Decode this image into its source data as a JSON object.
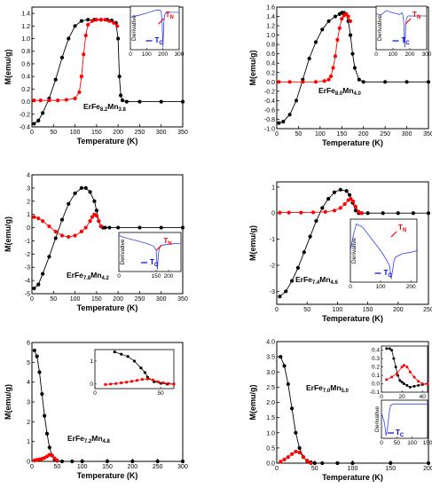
{
  "chart_data": [
    {
      "type": "scatter",
      "compound": {
        "base": "ErFe",
        "fe_sub": "8.2",
        "mn": "Mn",
        "mn_sub": "3.8"
      },
      "ylabel": "M(emu/g)",
      "xlabel": "Temperature (K)",
      "xlim": [
        0,
        350
      ],
      "ylim": [
        -0.4,
        1.5
      ],
      "xticks": [
        0,
        50,
        100,
        150,
        200,
        250,
        300,
        350
      ],
      "yticks": [
        -0.4,
        -0.2,
        0.0,
        0.2,
        0.4,
        0.6,
        0.8,
        1.0,
        1.2,
        1.4
      ],
      "yticklabels": [
        "-0.4",
        "-0.2",
        "0.0",
        "0.2",
        "0.4",
        "0.6",
        "0.8",
        "1.0",
        "1.2",
        "1.4"
      ],
      "series": [
        {
          "color": "#000000",
          "x": [
            5,
            15,
            25,
            40,
            55,
            70,
            85,
            100,
            115,
            130,
            145,
            160,
            175,
            185,
            195,
            200,
            203,
            206,
            210,
            220,
            250,
            300,
            350
          ],
          "y": [
            -0.35,
            -0.3,
            -0.18,
            0.05,
            0.35,
            0.7,
            1.0,
            1.2,
            1.28,
            1.3,
            1.3,
            1.3,
            1.3,
            1.29,
            1.25,
            1.0,
            0.4,
            0.1,
            0.02,
            0.0,
            0.0,
            0.0,
            0.0
          ]
        },
        {
          "color": "#ff0000",
          "x": [
            5,
            20,
            40,
            60,
            80,
            100,
            110,
            115,
            120,
            125,
            130,
            140,
            150,
            160,
            170,
            180,
            190,
            198
          ],
          "y": [
            0.02,
            0.02,
            0.02,
            0.02,
            0.03,
            0.05,
            0.15,
            0.4,
            0.75,
            1.05,
            1.22,
            1.28,
            1.3,
            1.3,
            1.3,
            1.28,
            1.25,
            1.2
          ]
        }
      ],
      "inset": {
        "xlabel_ticks": [
          0,
          100,
          200,
          300
        ],
        "xlim": [
          0,
          300
        ],
        "ylabel": "Derivative",
        "markers": [
          {
            "label": "T",
            "sub": "N",
            "color": "#ff0000"
          },
          {
            "label": "T",
            "sub": "C",
            "color": "#0000ff"
          }
        ],
        "x": [
          0,
          50,
          100,
          140,
          160,
          180,
          190,
          195,
          200,
          205,
          210,
          220,
          250,
          300
        ],
        "y": [
          0.5,
          0.58,
          0.68,
          0.78,
          0.82,
          0.83,
          0.75,
          0.2,
          -0.9,
          0.2,
          0.6,
          0.7,
          0.72,
          0.72
        ]
      }
    },
    {
      "type": "scatter",
      "compound": {
        "base": "ErFe",
        "fe_sub": "8.0",
        "mn": "Mn",
        "mn_sub": "4.0"
      },
      "ylabel": "M(emu/g)",
      "xlabel": "Temperature (K)",
      "xlim": [
        0,
        350
      ],
      "ylim": [
        -1.0,
        1.6
      ],
      "xticks": [
        0,
        50,
        100,
        150,
        200,
        250,
        300,
        350
      ],
      "yticks": [
        -1.0,
        -0.8,
        -0.6,
        -0.4,
        -0.2,
        0.0,
        0.2,
        0.4,
        0.6,
        0.8,
        1.0,
        1.2,
        1.4,
        1.6
      ],
      "yticklabels": [
        "-1.0",
        "-0.8",
        "-0.6",
        "-0.4",
        "-0.2",
        "0.0",
        "0.2",
        "0.4",
        "0.6",
        "0.8",
        "1.0",
        "1.2",
        "1.4",
        "1.6"
      ],
      "series": [
        {
          "color": "#000000",
          "x": [
            5,
            15,
            30,
            45,
            60,
            75,
            90,
            105,
            120,
            135,
            145,
            150,
            155,
            160,
            165,
            170,
            175,
            180,
            190,
            200,
            250,
            300,
            350
          ],
          "y": [
            -0.88,
            -0.85,
            -0.7,
            -0.4,
            0.05,
            0.5,
            0.85,
            1.12,
            1.3,
            1.4,
            1.45,
            1.48,
            1.48,
            1.45,
            1.3,
            1.0,
            0.6,
            0.3,
            0.05,
            0.0,
            0.0,
            0.0,
            0.0
          ]
        },
        {
          "color": "#ff0000",
          "x": [
            5,
            30,
            60,
            90,
            110,
            120,
            125,
            130,
            135,
            140,
            145,
            150,
            155,
            160,
            165,
            170
          ],
          "y": [
            0.0,
            0.0,
            0.0,
            0.0,
            0.02,
            0.05,
            0.12,
            0.3,
            0.55,
            0.9,
            1.15,
            1.35,
            1.42,
            1.45,
            1.4,
            1.3
          ]
        }
      ],
      "inset": {
        "xlabel_ticks": [
          0,
          100,
          200,
          300
        ],
        "xlim": [
          0,
          300
        ],
        "ylabel": "Derivative",
        "markers": [
          {
            "label": "T",
            "sub": "N",
            "color": "#ff0000"
          },
          {
            "label": "T",
            "sub": "C",
            "color": "#0000ff"
          }
        ],
        "x": [
          0,
          30,
          60,
          100,
          140,
          155,
          160,
          165,
          170,
          175,
          180,
          190,
          220,
          300
        ],
        "y": [
          0.65,
          0.6,
          0.8,
          0.7,
          0.62,
          0.7,
          0.55,
          0.1,
          -0.9,
          0.0,
          0.45,
          0.55,
          0.55,
          0.55
        ]
      }
    },
    {
      "type": "scatter",
      "compound": {
        "base": "ErFe",
        "fe_sub": "7.8",
        "mn": "Mn",
        "mn_sub": "4.2"
      },
      "ylabel": "M(emu/g)",
      "xlabel": "Temperature (K)",
      "xlim": [
        0,
        350
      ],
      "ylim": [
        -5,
        4
      ],
      "xticks": [
        0,
        50,
        100,
        150,
        200,
        250,
        300,
        350
      ],
      "yticks": [
        -5,
        -4,
        -3,
        -2,
        -1,
        0,
        1,
        2,
        3,
        4
      ],
      "yticklabels": [
        "-5",
        "-4",
        "-3",
        "-2",
        "-1",
        "0",
        "1",
        "2",
        "3",
        "4"
      ],
      "series": [
        {
          "color": "#000000",
          "x": [
            5,
            15,
            25,
            40,
            55,
            70,
            85,
            100,
            115,
            125,
            135,
            145,
            150,
            155,
            160,
            165,
            170,
            180,
            200,
            250,
            300,
            350
          ],
          "y": [
            -4.6,
            -4.3,
            -3.5,
            -2.2,
            -0.8,
            0.6,
            1.8,
            2.6,
            3.0,
            3.0,
            2.7,
            2.0,
            1.3,
            0.5,
            0.1,
            0.0,
            0.0,
            0.0,
            0.0,
            0.0,
            0.0,
            0.0
          ]
        },
        {
          "color": "#ff0000",
          "x": [
            5,
            15,
            25,
            40,
            55,
            70,
            85,
            100,
            115,
            125,
            135,
            140,
            145,
            150,
            155,
            160
          ],
          "y": [
            0.8,
            0.7,
            0.5,
            0.1,
            -0.3,
            -0.6,
            -0.7,
            -0.6,
            -0.3,
            0.0,
            0.5,
            0.8,
            1.0,
            0.9,
            0.5,
            0.1
          ]
        }
      ],
      "inset": {
        "xlabel_ticks": [
          0,
          150,
          200
        ],
        "xlim": [
          0,
          250
        ],
        "ylabel": "Derivative",
        "markers": [
          {
            "label": "T",
            "sub": "N",
            "color": "#ff0000"
          },
          {
            "label": "T",
            "sub": "C",
            "color": "#0000ff"
          }
        ],
        "x": [
          0,
          20,
          50,
          80,
          110,
          140,
          150,
          155,
          160,
          165,
          170,
          175,
          200,
          250
        ],
        "y": [
          0.85,
          0.75,
          0.65,
          0.55,
          0.45,
          0.3,
          0.1,
          -0.9,
          0.0,
          0.25,
          0.3,
          0.35,
          0.4,
          0.45
        ]
      }
    },
    {
      "type": "scatter",
      "compound": {
        "base": "ErFe",
        "fe_sub": "7.4",
        "mn": "Mn",
        "mn_sub": "4.6"
      },
      "ylabel": "M(emu/g)",
      "xlabel": "Temperature (K)",
      "xlim": [
        0,
        250
      ],
      "ylim": [
        -3.5,
        1.2
      ],
      "xticks": [
        0,
        50,
        100,
        150,
        200,
        250
      ],
      "yticks": [
        -3,
        -2,
        -1,
        0,
        1
      ],
      "yticklabels": [
        "-3",
        "-2",
        "-1",
        "0",
        "1"
      ],
      "series": [
        {
          "color": "#000000",
          "x": [
            5,
            15,
            25,
            35,
            45,
            55,
            65,
            75,
            85,
            95,
            105,
            115,
            120,
            125,
            130,
            135,
            140,
            150,
            175,
            200,
            225,
            250
          ],
          "y": [
            -3.2,
            -3.0,
            -2.6,
            -2.1,
            -1.5,
            -0.9,
            -0.3,
            0.2,
            0.55,
            0.8,
            0.9,
            0.85,
            0.7,
            0.4,
            0.1,
            0.0,
            0.0,
            0.0,
            0.0,
            0.0,
            0.0,
            0.0
          ]
        },
        {
          "color": "#ff0000",
          "x": [
            5,
            20,
            40,
            60,
            80,
            95,
            105,
            112,
            118,
            122,
            126,
            130,
            135,
            140
          ],
          "y": [
            0.02,
            0.02,
            0.02,
            0.03,
            0.05,
            0.1,
            0.2,
            0.35,
            0.5,
            0.55,
            0.45,
            0.25,
            0.05,
            0.0
          ]
        }
      ],
      "inset": {
        "xlabel_ticks": [
          0,
          100,
          200
        ],
        "xlim": [
          0,
          220
        ],
        "ylabel": "Derivative",
        "markers": [
          {
            "label": "T",
            "sub": "N",
            "color": "#ff0000"
          },
          {
            "label": "T",
            "sub": "C",
            "color": "#0000ff"
          }
        ],
        "x": [
          0,
          10,
          20,
          40,
          60,
          80,
          100,
          120,
          130,
          135,
          140,
          145,
          150,
          170,
          200,
          220
        ],
        "y": [
          0.0,
          0.5,
          0.85,
          0.75,
          0.5,
          0.25,
          0.0,
          -0.3,
          -0.5,
          -0.9,
          -0.6,
          -0.3,
          -0.2,
          -0.1,
          -0.05,
          0.0
        ]
      }
    },
    {
      "type": "scatter",
      "compound": {
        "base": "ErFe",
        "fe_sub": "7.2",
        "mn": "Mn",
        "mn_sub": "4.8"
      },
      "ylabel": "M(emu/g)",
      "xlabel": "Temperature (K)",
      "xlim": [
        0,
        300
      ],
      "ylim": [
        0,
        6
      ],
      "xticks": [
        0,
        50,
        100,
        150,
        200,
        250,
        300
      ],
      "yticks": [
        0,
        1,
        2,
        3,
        4,
        5,
        6
      ],
      "yticklabels": [
        "0",
        "1",
        "2",
        "3",
        "4",
        "5",
        "6"
      ],
      "series": [
        {
          "color": "#000000",
          "x": [
            5,
            10,
            15,
            20,
            25,
            30,
            35,
            40,
            45,
            50,
            60,
            80,
            100,
            150,
            200,
            250,
            300
          ],
          "y": [
            5.6,
            5.3,
            4.5,
            3.4,
            2.3,
            1.4,
            0.7,
            0.3,
            0.1,
            0.03,
            0.0,
            0.0,
            0.0,
            0.0,
            0.0,
            0.0,
            0.0
          ]
        },
        {
          "color": "#ff0000",
          "x": [
            5,
            10,
            15,
            20,
            25,
            30,
            35,
            40,
            45,
            50
          ],
          "y": [
            0.05,
            0.08,
            0.1,
            0.13,
            0.18,
            0.25,
            0.33,
            0.3,
            0.15,
            0.05
          ]
        }
      ],
      "inset": {
        "xlabel_ticks": [
          0,
          50
        ],
        "xlim": [
          0,
          60
        ],
        "yticks": [
          0,
          1
        ],
        "black_x": [
          15,
          20,
          25,
          30,
          35,
          38,
          40,
          45,
          50,
          55,
          60
        ],
        "black_y": [
          1.4,
          1.3,
          1.2,
          1.0,
          0.7,
          0.5,
          0.3,
          0.1,
          0.03,
          0.0,
          0.0
        ],
        "red_x": [
          8,
          12,
          16,
          20,
          24,
          28,
          32,
          36,
          40,
          44,
          48,
          52,
          56,
          60
        ],
        "red_y": [
          -0.02,
          0.0,
          0.02,
          0.05,
          0.08,
          0.12,
          0.16,
          0.2,
          0.22,
          0.18,
          0.1,
          0.05,
          0.02,
          0.0
        ]
      }
    },
    {
      "type": "scatter",
      "compound": {
        "base": "ErFe",
        "fe_sub": "7.0",
        "mn": "Mn",
        "mn_sub": "5.0"
      },
      "ylabel": "M(emu/g)",
      "xlabel": "Temperature (K)",
      "xlim": [
        0,
        200
      ],
      "ylim": [
        0,
        4
      ],
      "xticks": [
        0,
        50,
        100,
        150,
        200
      ],
      "yticks": [
        0.0,
        0.5,
        1.0,
        1.5,
        2.0,
        2.5,
        3.0,
        3.5,
        4.0
      ],
      "yticklabels": [
        "0.0",
        "0.5",
        "1.0",
        "1.5",
        "2.0",
        "2.5",
        "3.0",
        "3.5",
        "4.0"
      ],
      "series": [
        {
          "color": "#000000",
          "x": [
            5,
            10,
            15,
            20,
            25,
            30,
            35,
            40,
            45,
            50,
            60,
            80,
            100,
            150,
            200
          ],
          "y": [
            3.5,
            3.2,
            2.6,
            1.8,
            1.0,
            0.5,
            0.2,
            0.08,
            0.03,
            0.0,
            0.0,
            0.0,
            0.0,
            0.0,
            0.0
          ]
        },
        {
          "color": "#ff0000",
          "x": [
            5,
            10,
            15,
            20,
            25,
            30,
            35,
            40,
            45
          ],
          "y": [
            0.05,
            0.12,
            0.2,
            0.3,
            0.38,
            0.35,
            0.2,
            0.07,
            0.0
          ]
        }
      ],
      "inset": {
        "xlabel_ticks": [
          0,
          20,
          40
        ],
        "xlim": [
          0,
          45
        ],
        "yticks": [
          -0.1,
          0.0,
          0.1,
          0.2,
          0.3,
          0.4
        ],
        "yticklabels": [
          "-0.1",
          "0.0",
          "0.1",
          "0.2",
          "0.3",
          "0.4"
        ],
        "black_x": [
          5,
          8,
          10,
          12,
          14,
          16,
          18,
          20,
          22,
          25,
          28,
          32,
          36,
          40,
          45
        ],
        "black_y": [
          0.42,
          0.42,
          0.4,
          0.3,
          0.2,
          0.1,
          0.04,
          0.02,
          0.0,
          -0.02,
          -0.04,
          -0.03,
          -0.02,
          -0.01,
          0.0
        ],
        "red_x": [
          5,
          10,
          15,
          20,
          22,
          25,
          28,
          32,
          36,
          40,
          45
        ],
        "red_y": [
          0.05,
          0.08,
          0.12,
          0.2,
          0.22,
          0.2,
          0.14,
          0.08,
          0.03,
          0.0,
          0.0
        ],
        "deriv_xticks": [
          0,
          50,
          100,
          150
        ],
        "deriv_ylabel": "Derivative",
        "deriv_marker": {
          "label": "T",
          "sub": "C",
          "color": "#0000ff"
        },
        "deriv_x": [
          0,
          10,
          15,
          20,
          25,
          30,
          40,
          60,
          100,
          150
        ],
        "deriv_y": [
          0.0,
          -0.4,
          -0.9,
          -0.6,
          0.0,
          0.3,
          0.35,
          0.35,
          0.35,
          0.35
        ]
      }
    }
  ]
}
